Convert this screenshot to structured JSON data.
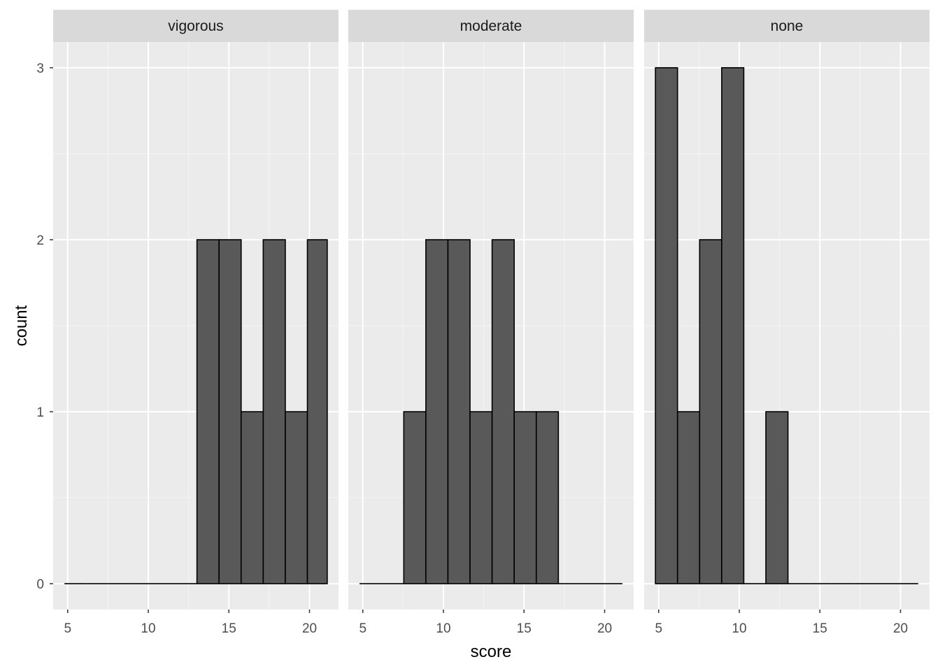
{
  "chart_data": {
    "type": "bar",
    "chart_kind": "faceted histogram",
    "xlabel": "score",
    "ylabel": "count",
    "xlim": [
      4.1,
      21.8
    ],
    "ylim": [
      -0.15,
      3.15
    ],
    "x_ticks": [
      5,
      10,
      15,
      20
    ],
    "y_ticks": [
      0,
      1,
      2,
      3
    ],
    "grid": true,
    "bin_width": 1.37,
    "colors": {
      "bar_fill": "#595959",
      "bar_outline": "#000000",
      "panel_background": "#ebebeb",
      "strip_background": "#d9d9d9",
      "grid": "#ffffff"
    },
    "panels": [
      {
        "title": "vigorous",
        "bins": [
          {
            "x0": 4.8,
            "x1": 6.17,
            "count": 0
          },
          {
            "x0": 6.17,
            "x1": 7.54,
            "count": 0
          },
          {
            "x0": 7.54,
            "x1": 8.91,
            "count": 0
          },
          {
            "x0": 8.91,
            "x1": 10.28,
            "count": 0
          },
          {
            "x0": 10.28,
            "x1": 11.65,
            "count": 0
          },
          {
            "x0": 11.65,
            "x1": 13.02,
            "count": 0
          },
          {
            "x0": 13.02,
            "x1": 14.39,
            "count": 2
          },
          {
            "x0": 14.39,
            "x1": 15.76,
            "count": 2
          },
          {
            "x0": 15.76,
            "x1": 17.13,
            "count": 1
          },
          {
            "x0": 17.13,
            "x1": 18.5,
            "count": 2
          },
          {
            "x0": 18.5,
            "x1": 19.87,
            "count": 1
          },
          {
            "x0": 19.87,
            "x1": 21.1,
            "count": 2
          }
        ]
      },
      {
        "title": "moderate",
        "bins": [
          {
            "x0": 4.8,
            "x1": 6.17,
            "count": 0
          },
          {
            "x0": 6.17,
            "x1": 7.54,
            "count": 0
          },
          {
            "x0": 7.54,
            "x1": 8.91,
            "count": 1
          },
          {
            "x0": 8.91,
            "x1": 10.28,
            "count": 2
          },
          {
            "x0": 10.28,
            "x1": 11.65,
            "count": 2
          },
          {
            "x0": 11.65,
            "x1": 13.02,
            "count": 1
          },
          {
            "x0": 13.02,
            "x1": 14.39,
            "count": 2
          },
          {
            "x0": 14.39,
            "x1": 15.76,
            "count": 1
          },
          {
            "x0": 15.76,
            "x1": 17.13,
            "count": 1
          },
          {
            "x0": 17.13,
            "x1": 18.5,
            "count": 0
          },
          {
            "x0": 18.5,
            "x1": 19.87,
            "count": 0
          },
          {
            "x0": 19.87,
            "x1": 21.1,
            "count": 0
          }
        ]
      },
      {
        "title": "none",
        "bins": [
          {
            "x0": 4.8,
            "x1": 6.17,
            "count": 3
          },
          {
            "x0": 6.17,
            "x1": 7.54,
            "count": 1
          },
          {
            "x0": 7.54,
            "x1": 8.91,
            "count": 2
          },
          {
            "x0": 8.91,
            "x1": 10.28,
            "count": 3
          },
          {
            "x0": 10.28,
            "x1": 11.65,
            "count": 0
          },
          {
            "x0": 11.65,
            "x1": 13.02,
            "count": 1
          },
          {
            "x0": 13.02,
            "x1": 14.39,
            "count": 0
          },
          {
            "x0": 14.39,
            "x1": 15.76,
            "count": 0
          },
          {
            "x0": 15.76,
            "x1": 17.13,
            "count": 0
          },
          {
            "x0": 17.13,
            "x1": 18.5,
            "count": 0
          },
          {
            "x0": 18.5,
            "x1": 19.87,
            "count": 0
          },
          {
            "x0": 19.87,
            "x1": 21.1,
            "count": 0
          }
        ]
      }
    ]
  }
}
